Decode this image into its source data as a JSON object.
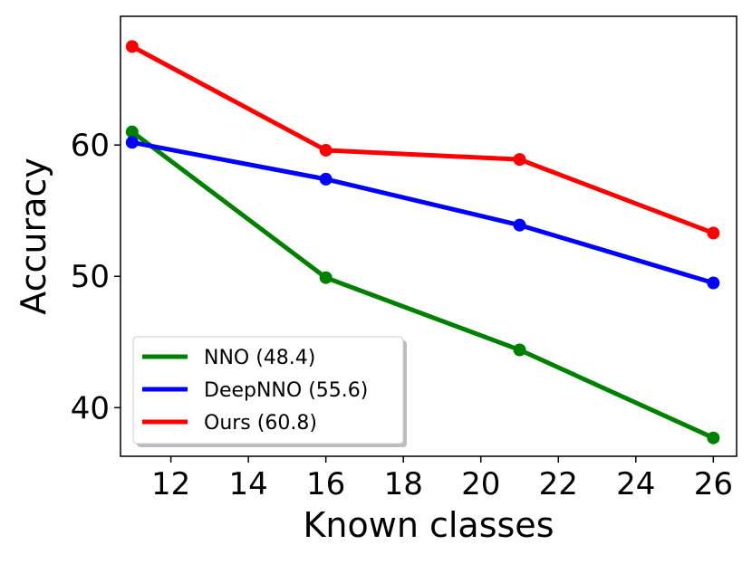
{
  "chart_data": {
    "type": "line",
    "title": "",
    "xlabel": "Known classes",
    "ylabel": "Accuracy",
    "xlim": [
      10.7,
      26.6
    ],
    "ylim": [
      36.3,
      69.8
    ],
    "xticks": [
      12,
      14,
      16,
      18,
      20,
      22,
      24,
      26
    ],
    "yticks": [
      40,
      50,
      60
    ],
    "x": [
      11,
      16,
      21,
      26
    ],
    "series": [
      {
        "name": "NNO (48.4)",
        "color": "#008000",
        "values": [
          61.0,
          49.9,
          44.4,
          37.7
        ]
      },
      {
        "name": "DeepNNO (55.6)",
        "color": "#0000ff",
        "values": [
          60.2,
          57.4,
          53.9,
          49.5
        ]
      },
      {
        "name": "Ours (60.8)",
        "color": "#ff0000",
        "values": [
          67.5,
          59.6,
          58.9,
          53.3
        ]
      }
    ],
    "grid": false,
    "legend_position": "lower-left"
  }
}
